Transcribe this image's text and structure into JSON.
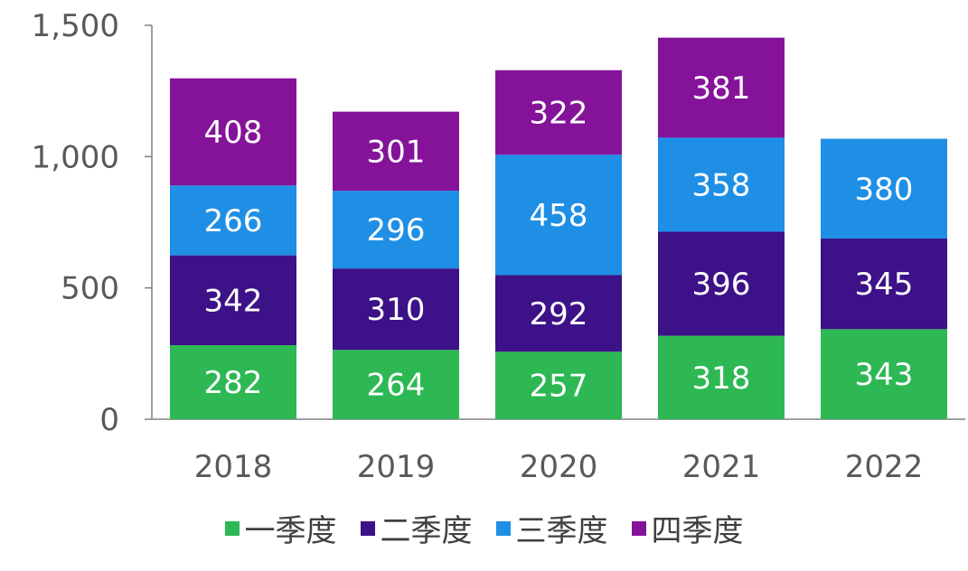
{
  "chart_data": {
    "type": "bar",
    "stacked": true,
    "categories": [
      "2018",
      "2019",
      "2020",
      "2021",
      "2022"
    ],
    "series": [
      {
        "name": "一季度",
        "color": "#2db854",
        "values": [
          282,
          264,
          257,
          318,
          343
        ]
      },
      {
        "name": "二季度",
        "color": "#3d1187",
        "values": [
          342,
          310,
          292,
          396,
          345
        ]
      },
      {
        "name": "三季度",
        "color": "#1f8fe6",
        "values": [
          266,
          296,
          458,
          358,
          380
        ]
      },
      {
        "name": "四季度",
        "color": "#85139a",
        "values": [
          408,
          301,
          322,
          381,
          null
        ]
      }
    ],
    "yticks": [
      "0",
      "500",
      "1,000",
      "1,500"
    ],
    "ylim": [
      0,
      1500
    ],
    "grid": false,
    "legend_position": "bottom",
    "data_labels": true,
    "axis_text_color": "#595959",
    "label_color": "#ffffff"
  }
}
